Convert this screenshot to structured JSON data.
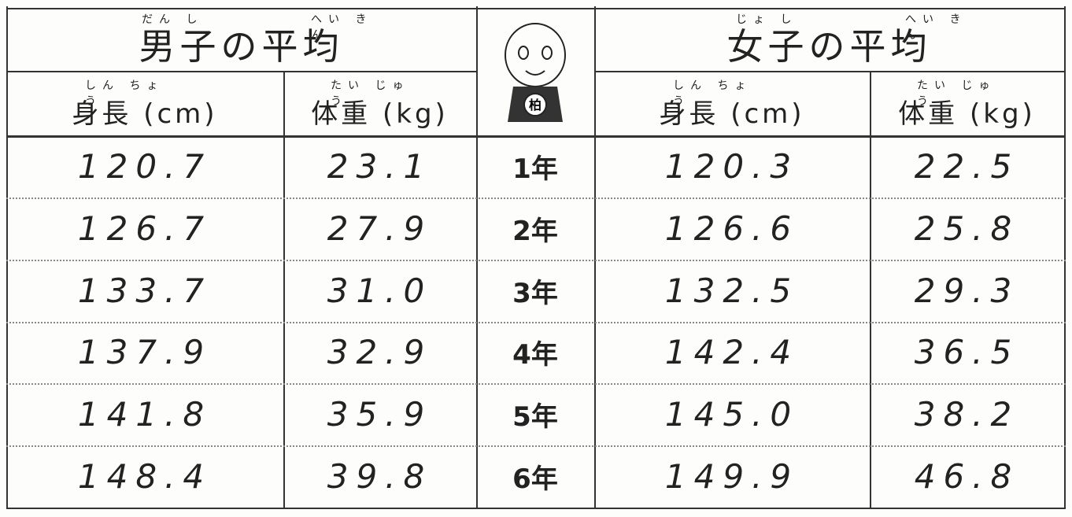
{
  "header": {
    "boys": {
      "title": "男子の平均",
      "ruby": [
        "だん し",
        "へい きん"
      ]
    },
    "girls": {
      "title": "女子の平均",
      "ruby": [
        "じょ し",
        "へい きん"
      ]
    },
    "mascot_badge": "柏"
  },
  "subheader": {
    "height": "身長 (cm)",
    "height_ruby": "しん ちょう",
    "weight": "体重 (kg)",
    "weight_ruby": "たい じゅう"
  },
  "table": {
    "rows": [
      [
        "120.7",
        "23.1",
        "1年",
        "120.3",
        "22.5"
      ],
      [
        "126.7",
        "27.9",
        "2年",
        "126.6",
        "25.8"
      ],
      [
        "133.7",
        "31.0",
        "3年",
        "132.5",
        "29.3"
      ],
      [
        "137.9",
        "32.9",
        "4年",
        "142.4",
        "36.5"
      ],
      [
        "141.8",
        "35.9",
        "5年",
        "145.0",
        "38.2"
      ],
      [
        "148.4",
        "39.8",
        "6年",
        "149.9",
        "46.8"
      ]
    ]
  }
}
